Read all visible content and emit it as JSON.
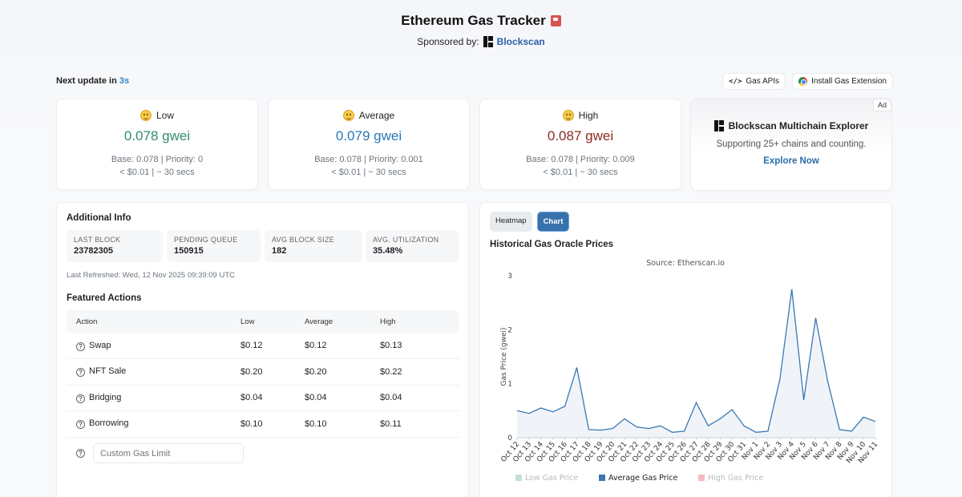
{
  "header": {
    "title": "Ethereum Gas Tracker",
    "sponsor_label": "Sponsored by:",
    "sponsor_name": "Blockscan"
  },
  "update": {
    "prefix": "Next update in",
    "seconds": "3s"
  },
  "top_buttons": {
    "gas_apis": "Gas APIs",
    "install_extension": "Install Gas Extension"
  },
  "gas_cards": [
    {
      "label": "Low",
      "value": "0.078 gwei",
      "line1": "Base: 0.078 | Priority: 0",
      "line2": "< $0.01 | ~ 30 secs",
      "color": "#2e8f6a"
    },
    {
      "label": "Average",
      "value": "0.079 gwei",
      "line1": "Base: 0.078 | Priority: 0.001",
      "line2": "< $0.01 | ~ 30 secs",
      "color": "#2a78b6"
    },
    {
      "label": "High",
      "value": "0.087 gwei",
      "line1": "Base: 0.078 | Priority: 0.009",
      "line2": "< $0.01 | ~ 30 secs",
      "color": "#8a2b22"
    }
  ],
  "ad": {
    "tag": "Ad",
    "title": "Blockscan Multichain Explorer",
    "subtitle": "Supporting 25+ chains and counting.",
    "link": "Explore Now"
  },
  "additional_info": {
    "title": "Additional Info",
    "stats": [
      {
        "label": "LAST BLOCK",
        "value": "23782305"
      },
      {
        "label": "PENDING QUEUE",
        "value": "150915"
      },
      {
        "label": "AVG BLOCK SIZE",
        "value": "182"
      },
      {
        "label": "AVG. UTILIZATION",
        "value": "35.48%"
      }
    ],
    "last_refreshed": "Last Refreshed: Wed, 12 Nov 2025 09:39:09 UTC"
  },
  "featured_actions": {
    "title": "Featured Actions",
    "columns": [
      "Action",
      "Low",
      "Average",
      "High"
    ],
    "rows": [
      {
        "action": "Swap",
        "low": "$0.12",
        "average": "$0.12",
        "high": "$0.13"
      },
      {
        "action": "NFT Sale",
        "low": "$0.20",
        "average": "$0.20",
        "high": "$0.22"
      },
      {
        "action": "Bridging",
        "low": "$0.04",
        "average": "$0.04",
        "high": "$0.04"
      },
      {
        "action": "Borrowing",
        "low": "$0.10",
        "average": "$0.10",
        "high": "$0.11"
      }
    ],
    "custom_placeholder": "Custom Gas Limit"
  },
  "chart_tabs": {
    "heatmap": "Heatmap",
    "chart": "Chart"
  },
  "chart_section_title": "Historical Gas Oracle Prices",
  "chart_data": {
    "type": "line",
    "subtitle": "Source: Etherscan.io",
    "ylabel": "Gas Price (gwei)",
    "ylim": [
      0,
      3
    ],
    "yticks": [
      0,
      1,
      2,
      3
    ],
    "categories": [
      "Oct 12",
      "Oct 13",
      "Oct 14",
      "Oct 15",
      "Oct 16",
      "Oct 17",
      "Oct 18",
      "Oct 19",
      "Oct 20",
      "Oct 21",
      "Oct 22",
      "Oct 23",
      "Oct 24",
      "Oct 25",
      "Oct 26",
      "Oct 27",
      "Oct 28",
      "Oct 29",
      "Oct 30",
      "Oct 31",
      "Nov 1",
      "Nov 2",
      "Nov 3",
      "Nov 4",
      "Nov 5",
      "Nov 6",
      "Nov 7",
      "Nov 8",
      "Nov 9",
      "Nov 10",
      "Nov 11"
    ],
    "series": [
      {
        "name": "Average Gas Price",
        "color": "#3b78b0",
        "visible": true,
        "values": [
          0.5,
          0.45,
          0.55,
          0.48,
          0.58,
          1.3,
          0.15,
          0.14,
          0.17,
          0.35,
          0.2,
          0.17,
          0.22,
          0.1,
          0.12,
          0.65,
          0.22,
          0.35,
          0.52,
          0.22,
          0.1,
          0.12,
          1.08,
          2.75,
          0.7,
          2.22,
          1.05,
          0.15,
          0.12,
          0.38,
          0.3
        ]
      }
    ],
    "legend": [
      {
        "name": "Low Gas Price",
        "color": "#4caf86",
        "visible": false
      },
      {
        "name": "Average Gas Price",
        "color": "#3b78b0",
        "visible": true
      },
      {
        "name": "High Gas Price",
        "color": "#d9434e",
        "visible": false
      }
    ],
    "legend_position": "bottom"
  }
}
